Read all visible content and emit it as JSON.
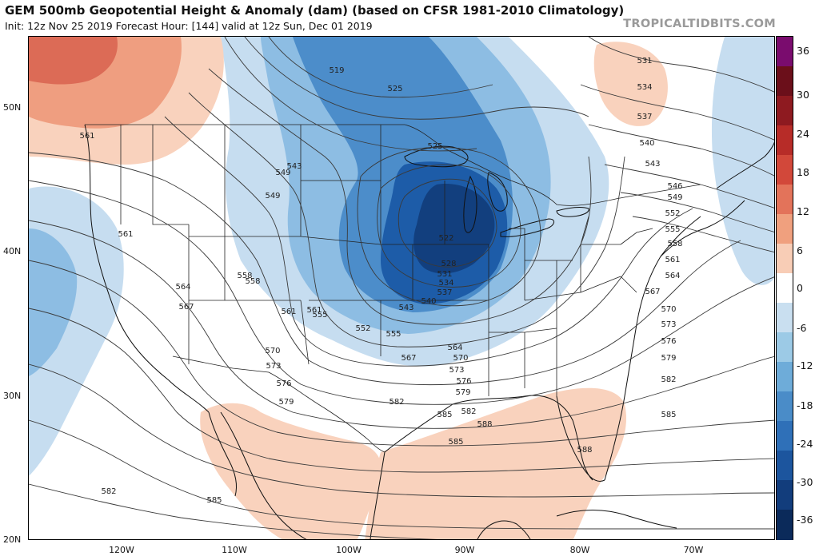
{
  "header": {
    "title": "GEM 500mb Geopotential Height & Anomaly (dam) (based on CFSR 1981-2010 Climatology)",
    "subtitle": "Init: 12z Nov 25 2019   Forecast Hour: [144]   valid at 12z Sun, Dec 01 2019",
    "brand": "TROPICALTIDBITS.COM"
  },
  "latitude_labels": [
    "50N",
    "40N",
    "30N",
    "20N"
  ],
  "longitude_labels": [
    "120W",
    "110W",
    "100W",
    "90W",
    "80W",
    "70W"
  ],
  "colorbar": {
    "labels": [
      "36",
      "30",
      "24",
      "18",
      "12",
      "6",
      "0",
      "-6",
      "-12",
      "-18",
      "-24",
      "-30",
      "-36"
    ],
    "colors": [
      "#7a0c6e",
      "#6b0f1a",
      "#8e1a20",
      "#b72c28",
      "#d2483a",
      "#e3735a",
      "#f0a07e",
      "#f8cdb6",
      "#ffffff",
      "#c9dff0",
      "#9ccae6",
      "#6eacd9",
      "#4a8cc8",
      "#2f70b8",
      "#1c559e",
      "#123d7c",
      "#0b2a5a"
    ]
  },
  "contours": {
    "labels": [
      "519",
      "525",
      "525",
      "522",
      "528",
      "531",
      "534",
      "537",
      "540",
      "543",
      "549",
      "552",
      "555",
      "558",
      "561",
      "564",
      "567",
      "570",
      "573",
      "576",
      "579",
      "582",
      "585",
      "588",
      "531",
      "534",
      "537",
      "540",
      "543",
      "546",
      "549",
      "552",
      "555",
      "558",
      "561",
      "564",
      "567",
      "570",
      "573",
      "576",
      "579",
      "582",
      "585",
      "588",
      "561",
      "561",
      "549",
      "543",
      "558",
      "564",
      "567",
      "555",
      "561",
      "570",
      "573",
      "576",
      "579",
      "582",
      "585",
      "582",
      "585"
    ]
  },
  "map_colors": {
    "neg_light": "#c6ddf0",
    "neg_mid": "#8dbde3",
    "neg_dark": "#4c8dca",
    "neg_deep": "#1d5ca8",
    "neg_core": "#123f7e",
    "pos_light": "#f9d2bd",
    "pos_mid": "#ef9e80",
    "pos_dark": "#dc6b56"
  }
}
